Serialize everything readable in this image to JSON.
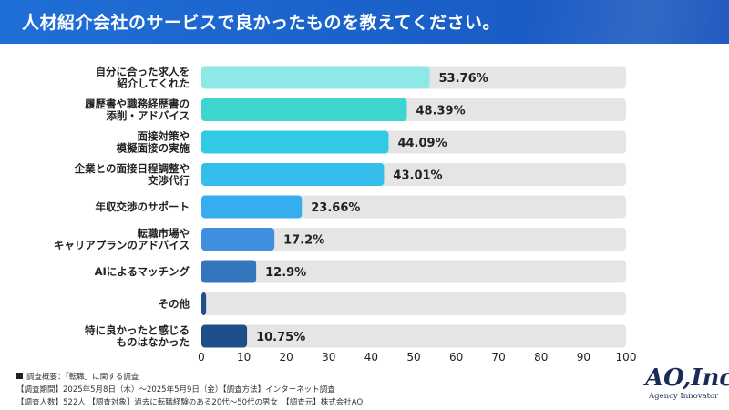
{
  "header": {
    "title": "人材紹介会社のサービスで良かったものを教えてください。"
  },
  "chart_data": {
    "type": "bar",
    "orientation": "horizontal",
    "title": "人材紹介会社のサービスで良かったものを教えてください。",
    "categories": [
      [
        "自分に合った求人を",
        "紹介してくれた"
      ],
      [
        "履歴書や職務経歴書の",
        "添削・アドバイス"
      ],
      [
        "面接対策や",
        "模擬面接の実施"
      ],
      [
        "企業との面接日程調整や",
        "交渉代行"
      ],
      [
        "年収交渉のサポート"
      ],
      [
        "転職市場や",
        "キャリアプランのアドバイス"
      ],
      [
        "AIによるマッチング"
      ],
      [
        "その他"
      ],
      [
        "特に良かったと感じる",
        "ものはなかった"
      ]
    ],
    "values": [
      53.76,
      48.39,
      44.09,
      43.01,
      23.66,
      17.2,
      12.9,
      1.1,
      10.75
    ],
    "value_labels": [
      "53.76%",
      "48.39%",
      "44.09%",
      "43.01%",
      "23.66%",
      "17.2%",
      "12.9%",
      "",
      "10.75%"
    ],
    "bar_colors": [
      "#8de8e6",
      "#3dd6cf",
      "#31c9e4",
      "#35bdeb",
      "#35aef0",
      "#3f8ee0",
      "#3575bd",
      "#1f4f8a",
      "#1f4f8a"
    ],
    "track_color": "#e5e5e5",
    "xlim": [
      0,
      100
    ],
    "xticks": [
      "0",
      "10",
      "20",
      "30",
      "40",
      "50",
      "60",
      "70",
      "80",
      "90",
      "100"
    ],
    "grid": false,
    "legend": "none"
  },
  "notes": {
    "line1": "調査概要：「転職」に関する調査",
    "line2": "【調査期間】2025年5月8日（木）～2025年5月9日（金）【調査方法】インターネット調査",
    "line3": "【調査人数】522人 【調査対象】過去に転職経験のある20代～50代の男女　【調査元】株式会社AO"
  },
  "logo": {
    "main": "AO,Inc.",
    "sub": "Agency Innovator"
  }
}
